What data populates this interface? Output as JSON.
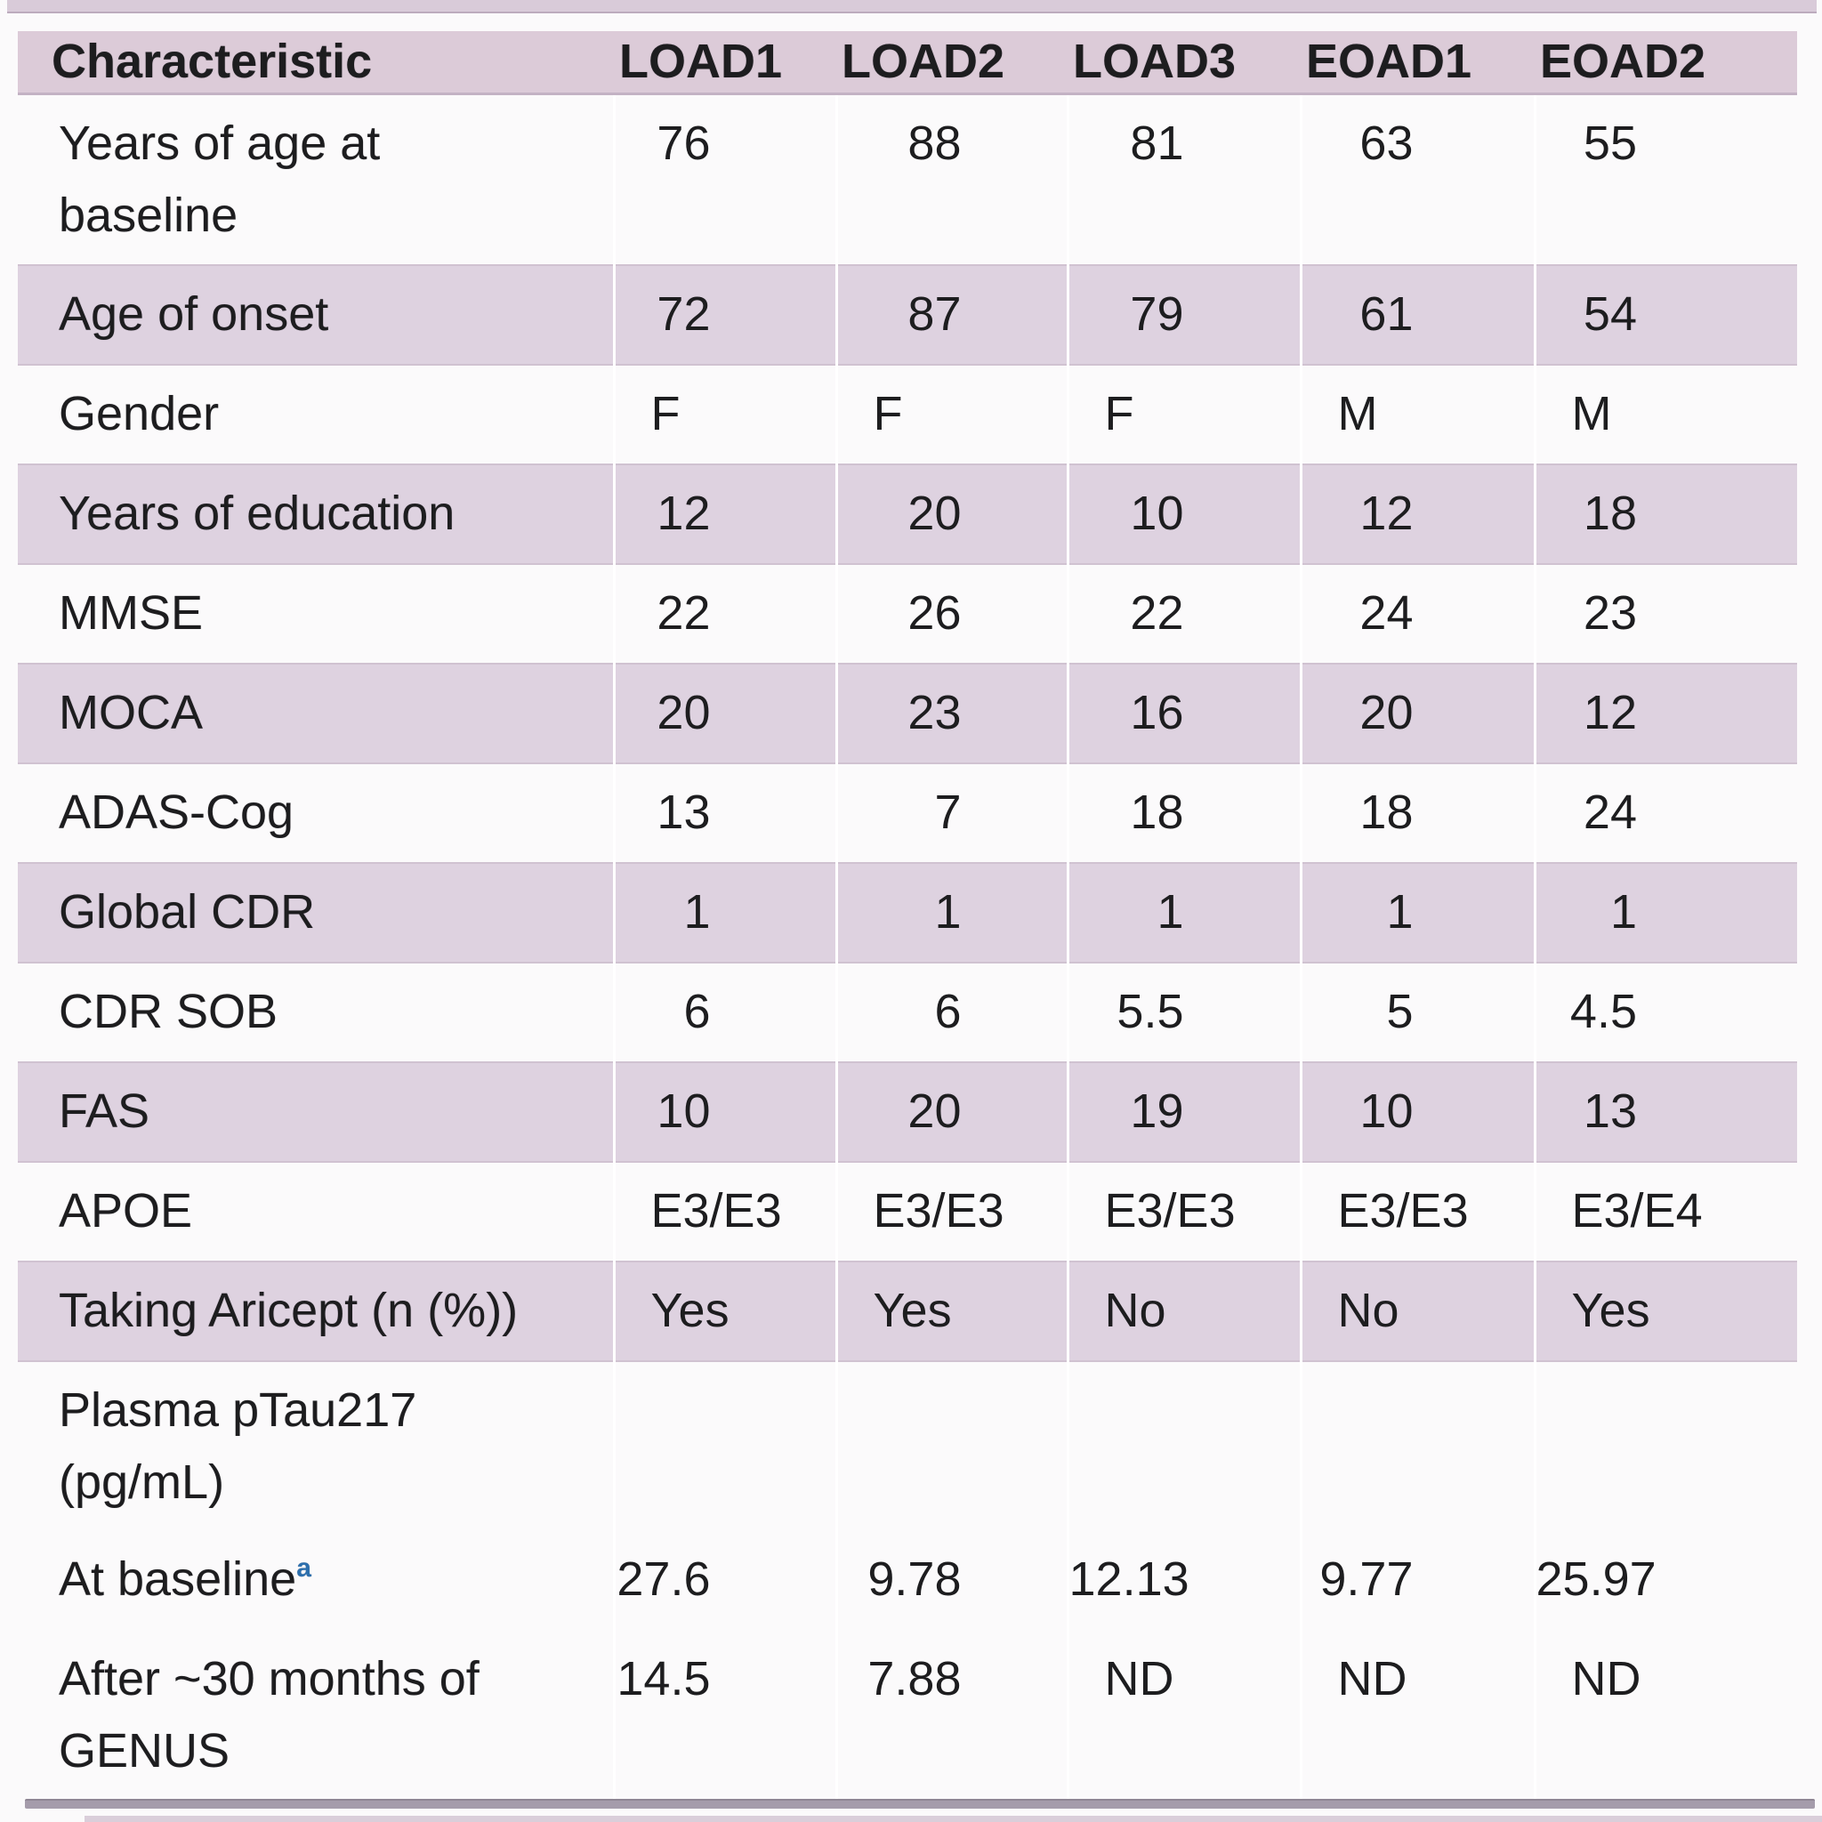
{
  "table": {
    "columns": [
      "Characteristic",
      "LOAD1",
      "LOAD2",
      "LOAD3",
      "EOAD1",
      "EOAD2"
    ],
    "rows": [
      {
        "label": "Years of age at\nbaseline",
        "shaded": false,
        "values": [
          "76",
          "88",
          "81",
          "63",
          "55"
        ]
      },
      {
        "label": "Age of onset",
        "shaded": true,
        "values": [
          "72",
          "87",
          "79",
          "61",
          "54"
        ]
      },
      {
        "label": "Gender",
        "shaded": false,
        "values": [
          "F",
          "F",
          "F",
          "M",
          "M"
        ]
      },
      {
        "label": "Years of education",
        "shaded": true,
        "values": [
          "12",
          "20",
          "10",
          "12",
          "18"
        ]
      },
      {
        "label": "MMSE",
        "shaded": false,
        "values": [
          "22",
          "26",
          "22",
          "24",
          "23"
        ]
      },
      {
        "label": "MOCA",
        "shaded": true,
        "values": [
          "20",
          "23",
          "16",
          "20",
          "12"
        ]
      },
      {
        "label": "ADAS-Cog",
        "shaded": false,
        "values": [
          "13",
          "7",
          "18",
          "18",
          "24"
        ]
      },
      {
        "label": "Global CDR",
        "shaded": true,
        "values": [
          "1",
          "1",
          "1",
          "1",
          "1"
        ]
      },
      {
        "label": "CDR SOB",
        "shaded": false,
        "values": [
          "6",
          "6",
          "5.5",
          "5",
          "4.5"
        ]
      },
      {
        "label": "FAS",
        "shaded": true,
        "values": [
          "10",
          "20",
          "19",
          "10",
          "13"
        ]
      },
      {
        "label": "APOE",
        "shaded": false,
        "values": [
          "E3/E3",
          "E3/E3",
          "E3/E3",
          "E3/E3",
          "E3/E4"
        ]
      },
      {
        "label": "Taking Aricept (n (%))",
        "shaded": true,
        "values": [
          "Yes",
          "Yes",
          "No",
          "No",
          "Yes"
        ]
      },
      {
        "label": "Plasma pTau217\n(pg/mL)",
        "shaded": false,
        "values": [
          "",
          "",
          "",
          "",
          ""
        ]
      },
      {
        "label": "At baseline",
        "superscript": "a",
        "shaded": false,
        "values": [
          "27.6",
          "9.78",
          "12.13",
          "9.77",
          "25.97"
        ]
      },
      {
        "label": "After ~30 months of\nGENUS",
        "shaded": false,
        "values": [
          "14.5",
          "7.88",
          "ND",
          "ND",
          "ND"
        ]
      }
    ]
  },
  "colors": {
    "header_band": "#dccbd8",
    "row_band": "#ded2e0",
    "footnote_marker_blue": "#2c6fad",
    "text": "#1d1d1f",
    "bottom_rule_gray": "#a59cab"
  }
}
